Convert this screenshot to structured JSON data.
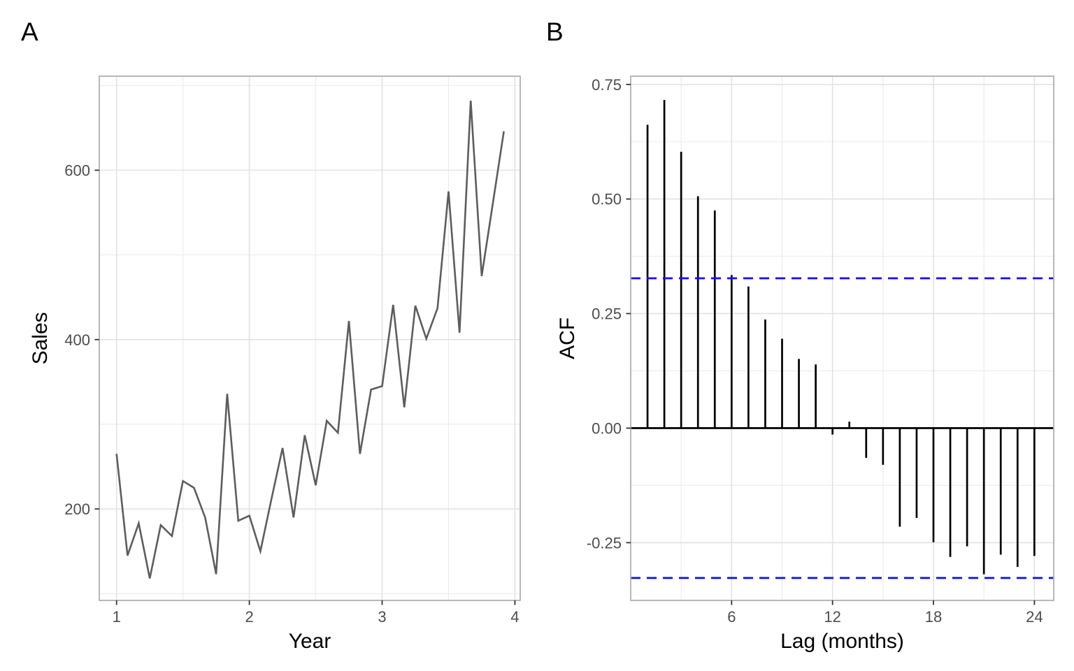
{
  "figure": {
    "panel_a_tag": "A",
    "panel_b_tag": "B",
    "background_color": "#ffffff",
    "grid_major_color": "#e2e2e2",
    "grid_minor_color": "#ebebeb",
    "panel_border_color": "#b0b0b0",
    "tick_mark_color": "#333333",
    "tick_label_color": "#4d4d4d"
  },
  "chart_data": [
    {
      "type": "line",
      "panel_tag": "A",
      "title": "",
      "xlabel": "Year",
      "ylabel": "Sales",
      "line_color": "#5d5d5d",
      "x": [
        1.0,
        1.083,
        1.167,
        1.25,
        1.333,
        1.417,
        1.5,
        1.583,
        1.667,
        1.75,
        1.833,
        1.917,
        2.0,
        2.083,
        2.167,
        2.25,
        2.333,
        2.417,
        2.5,
        2.583,
        2.667,
        2.75,
        2.833,
        2.917,
        3.0,
        3.083,
        3.167,
        3.25,
        3.333,
        3.417,
        3.5,
        3.583,
        3.667,
        3.75,
        3.833,
        3.917
      ],
      "y": [
        265,
        145,
        183,
        118,
        181,
        168,
        233,
        225,
        190,
        123,
        336,
        186,
        192,
        150,
        212,
        272,
        190,
        287,
        228,
        304,
        290,
        422,
        265,
        341,
        345,
        441,
        320,
        440,
        401,
        437,
        575,
        408,
        682,
        475,
        560,
        646
      ],
      "xtick_values": [
        1,
        2,
        3,
        4
      ],
      "xtick_labels": [
        "1",
        "2",
        "3",
        "4"
      ],
      "x_minor": [
        1.5,
        2.5,
        3.5
      ],
      "ytick_values": [
        200,
        400,
        600
      ],
      "ytick_labels": [
        "200",
        "400",
        "600"
      ],
      "y_minor": [
        100,
        300,
        500,
        700
      ],
      "xlim": [
        0.87,
        4.04
      ],
      "ylim": [
        92,
        711
      ],
      "grid": true,
      "legend": false
    },
    {
      "type": "bar",
      "panel_tag": "B",
      "title": "",
      "xlabel": "Lag (months)",
      "ylabel": "ACF",
      "bar_color": "#000000",
      "conf_line_color": "#0d0dff",
      "conf_bounds": [
        0.327,
        -0.327
      ],
      "zero_line": 0,
      "x": [
        1,
        2,
        3,
        4,
        5,
        6,
        7,
        8,
        9,
        10,
        11,
        12,
        13,
        14,
        15,
        16,
        17,
        18,
        19,
        20,
        21,
        22,
        23,
        24
      ],
      "y": [
        0.662,
        0.716,
        0.603,
        0.506,
        0.475,
        0.334,
        0.309,
        0.237,
        0.195,
        0.151,
        0.139,
        -0.014,
        0.014,
        -0.065,
        -0.08,
        -0.215,
        -0.196,
        -0.249,
        -0.281,
        -0.258,
        -0.319,
        -0.276,
        -0.303,
        -0.279
      ],
      "xtick_values": [
        6,
        12,
        18,
        24
      ],
      "xtick_labels": [
        "6",
        "12",
        "18",
        "24"
      ],
      "x_minor": [
        3,
        9,
        15,
        21
      ],
      "ytick_values": [
        0.75,
        0.5,
        0.25,
        0,
        -0.25
      ],
      "ytick_labels": [
        "0.75",
        "0.50",
        "0.25",
        "0.00",
        "-0.25"
      ],
      "y_minor": [
        0.625,
        0.375,
        0.125,
        -0.125
      ],
      "xlim": [
        0.0,
        25.15
      ],
      "ylim": [
        -0.376,
        0.768
      ],
      "grid": true,
      "legend": false
    }
  ]
}
